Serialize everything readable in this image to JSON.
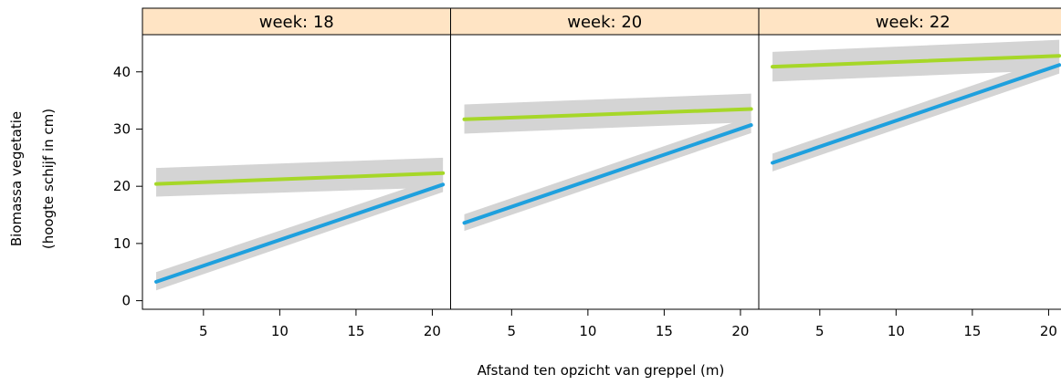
{
  "chart_data": {
    "type": "line",
    "xlabel": "Afstand ten opzicht van greppel (m)",
    "ylabel": [
      "Biomassa vegetatie",
      "(hoogte schijf in cm)"
    ],
    "xlim": [
      1.0,
      21.2
    ],
    "ylim": [
      -1.5,
      46.5
    ],
    "xticks": [
      5,
      10,
      15,
      20
    ],
    "yticks": [
      0,
      10,
      20,
      30,
      40
    ],
    "panels": [
      {
        "strip": "week: 18",
        "series": [
          {
            "color": "#a6d728",
            "x": [
              1.9,
              20.7
            ],
            "y": [
              20.4,
              22.3
            ],
            "ci_low": [
              18.2,
              19.8
            ],
            "ci_high": [
              23.2,
              25.0
            ]
          },
          {
            "color": "#1ea0de",
            "x": [
              1.9,
              20.7
            ],
            "y": [
              3.3,
              20.3
            ],
            "ci_low": [
              1.8,
              19.0
            ],
            "ci_high": [
              5.0,
              21.8
            ]
          }
        ]
      },
      {
        "strip": "week: 20",
        "series": [
          {
            "color": "#a6d728",
            "x": [
              1.9,
              20.7
            ],
            "y": [
              31.7,
              33.5
            ],
            "ci_low": [
              29.2,
              31.2
            ],
            "ci_high": [
              34.3,
              36.2
            ]
          },
          {
            "color": "#1ea0de",
            "x": [
              1.9,
              20.7
            ],
            "y": [
              13.6,
              30.7
            ],
            "ci_low": [
              12.2,
              29.3
            ],
            "ci_high": [
              15.1,
              32.2
            ]
          }
        ]
      },
      {
        "strip": "week: 22",
        "series": [
          {
            "color": "#a6d728",
            "x": [
              1.9,
              20.7
            ],
            "y": [
              40.9,
              42.8
            ],
            "ci_low": [
              38.3,
              40.3
            ],
            "ci_high": [
              43.5,
              45.6
            ]
          },
          {
            "color": "#1ea0de",
            "x": [
              1.9,
              20.7
            ],
            "y": [
              24.1,
              41.2
            ],
            "ci_low": [
              22.6,
              39.7
            ],
            "ci_high": [
              25.7,
              42.8
            ]
          }
        ]
      }
    ],
    "colors": {
      "strip_background": "#ffe4c4",
      "ci_band": "#d4d4d4",
      "axis": "#000000"
    }
  }
}
